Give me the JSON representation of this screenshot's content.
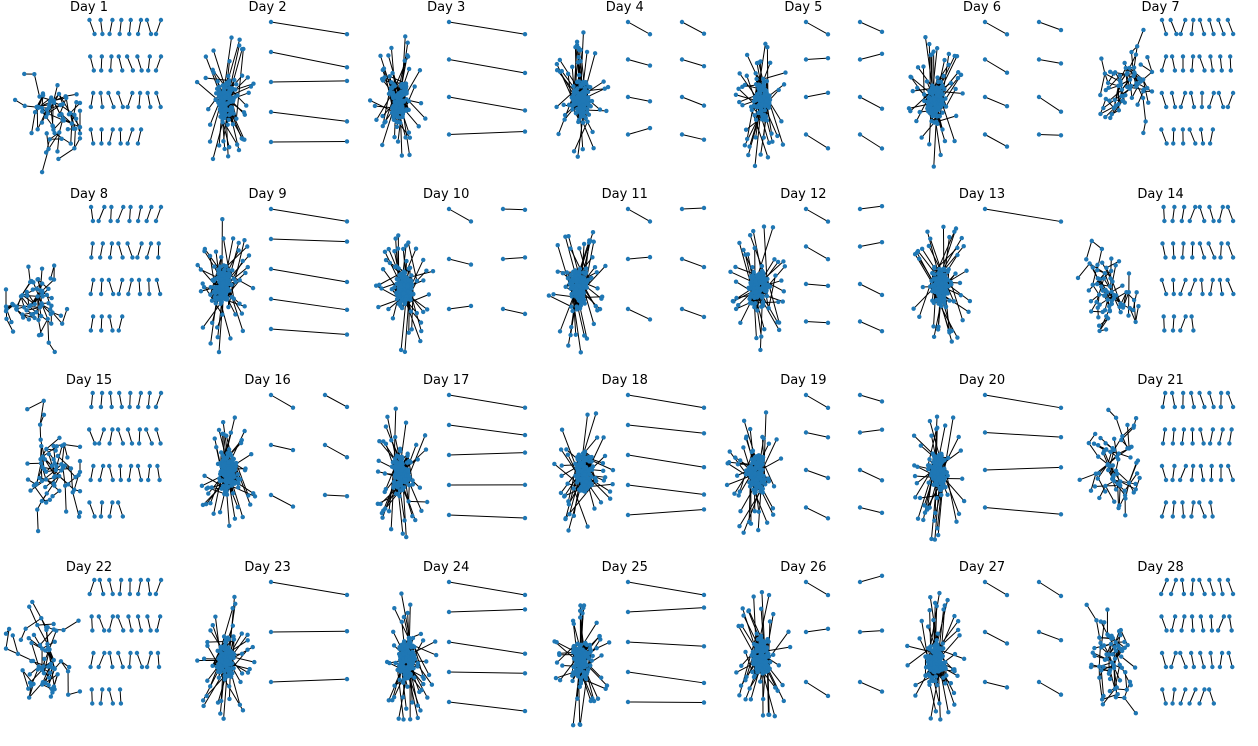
{
  "colors": {
    "node": "#1f77b4",
    "edge": "#000000",
    "background": "#ffffff"
  },
  "panels": [
    {
      "title": "Day 1",
      "layout": "tree",
      "pairs": 30
    },
    {
      "title": "Day 2",
      "layout": "hub",
      "pairs": 5
    },
    {
      "title": "Day 3",
      "layout": "hub",
      "pairs": 4
    },
    {
      "title": "Day 4",
      "layout": "hub",
      "pairs": 8
    },
    {
      "title": "Day 5",
      "layout": "hub",
      "pairs": 8
    },
    {
      "title": "Day 6",
      "layout": "hub",
      "pairs": 8
    },
    {
      "title": "Day 7",
      "layout": "tree",
      "pairs": 30
    },
    {
      "title": "Day 8",
      "layout": "tree",
      "pairs": 28
    },
    {
      "title": "Day 9",
      "layout": "hub",
      "pairs": 5
    },
    {
      "title": "Day 10",
      "layout": "hub",
      "pairs": 6
    },
    {
      "title": "Day 11",
      "layout": "hub",
      "pairs": 6
    },
    {
      "title": "Day 12",
      "layout": "hub",
      "pairs": 8
    },
    {
      "title": "Day 13",
      "layout": "hub",
      "pairs": 1
    },
    {
      "title": "Day 14",
      "layout": "tree",
      "pairs": 28
    },
    {
      "title": "Day 15",
      "layout": "tree",
      "pairs": 28
    },
    {
      "title": "Day 16",
      "layout": "hub",
      "pairs": 6
    },
    {
      "title": "Day 17",
      "layout": "hub",
      "pairs": 5
    },
    {
      "title": "Day 18",
      "layout": "hub",
      "pairs": 5
    },
    {
      "title": "Day 19",
      "layout": "hub",
      "pairs": 8
    },
    {
      "title": "Day 20",
      "layout": "hub",
      "pairs": 4
    },
    {
      "title": "Day 21",
      "layout": "tree",
      "pairs": 30
    },
    {
      "title": "Day 22",
      "layout": "tree",
      "pairs": 28
    },
    {
      "title": "Day 23",
      "layout": "hub",
      "pairs": 3
    },
    {
      "title": "Day 24",
      "layout": "hub",
      "pairs": 5
    },
    {
      "title": "Day 25",
      "layout": "hub",
      "pairs": 5
    },
    {
      "title": "Day 26",
      "layout": "hub",
      "pairs": 6
    },
    {
      "title": "Day 27",
      "layout": "hub",
      "pairs": 6
    },
    {
      "title": "Day 28",
      "layout": "tree",
      "pairs": 30
    }
  ]
}
